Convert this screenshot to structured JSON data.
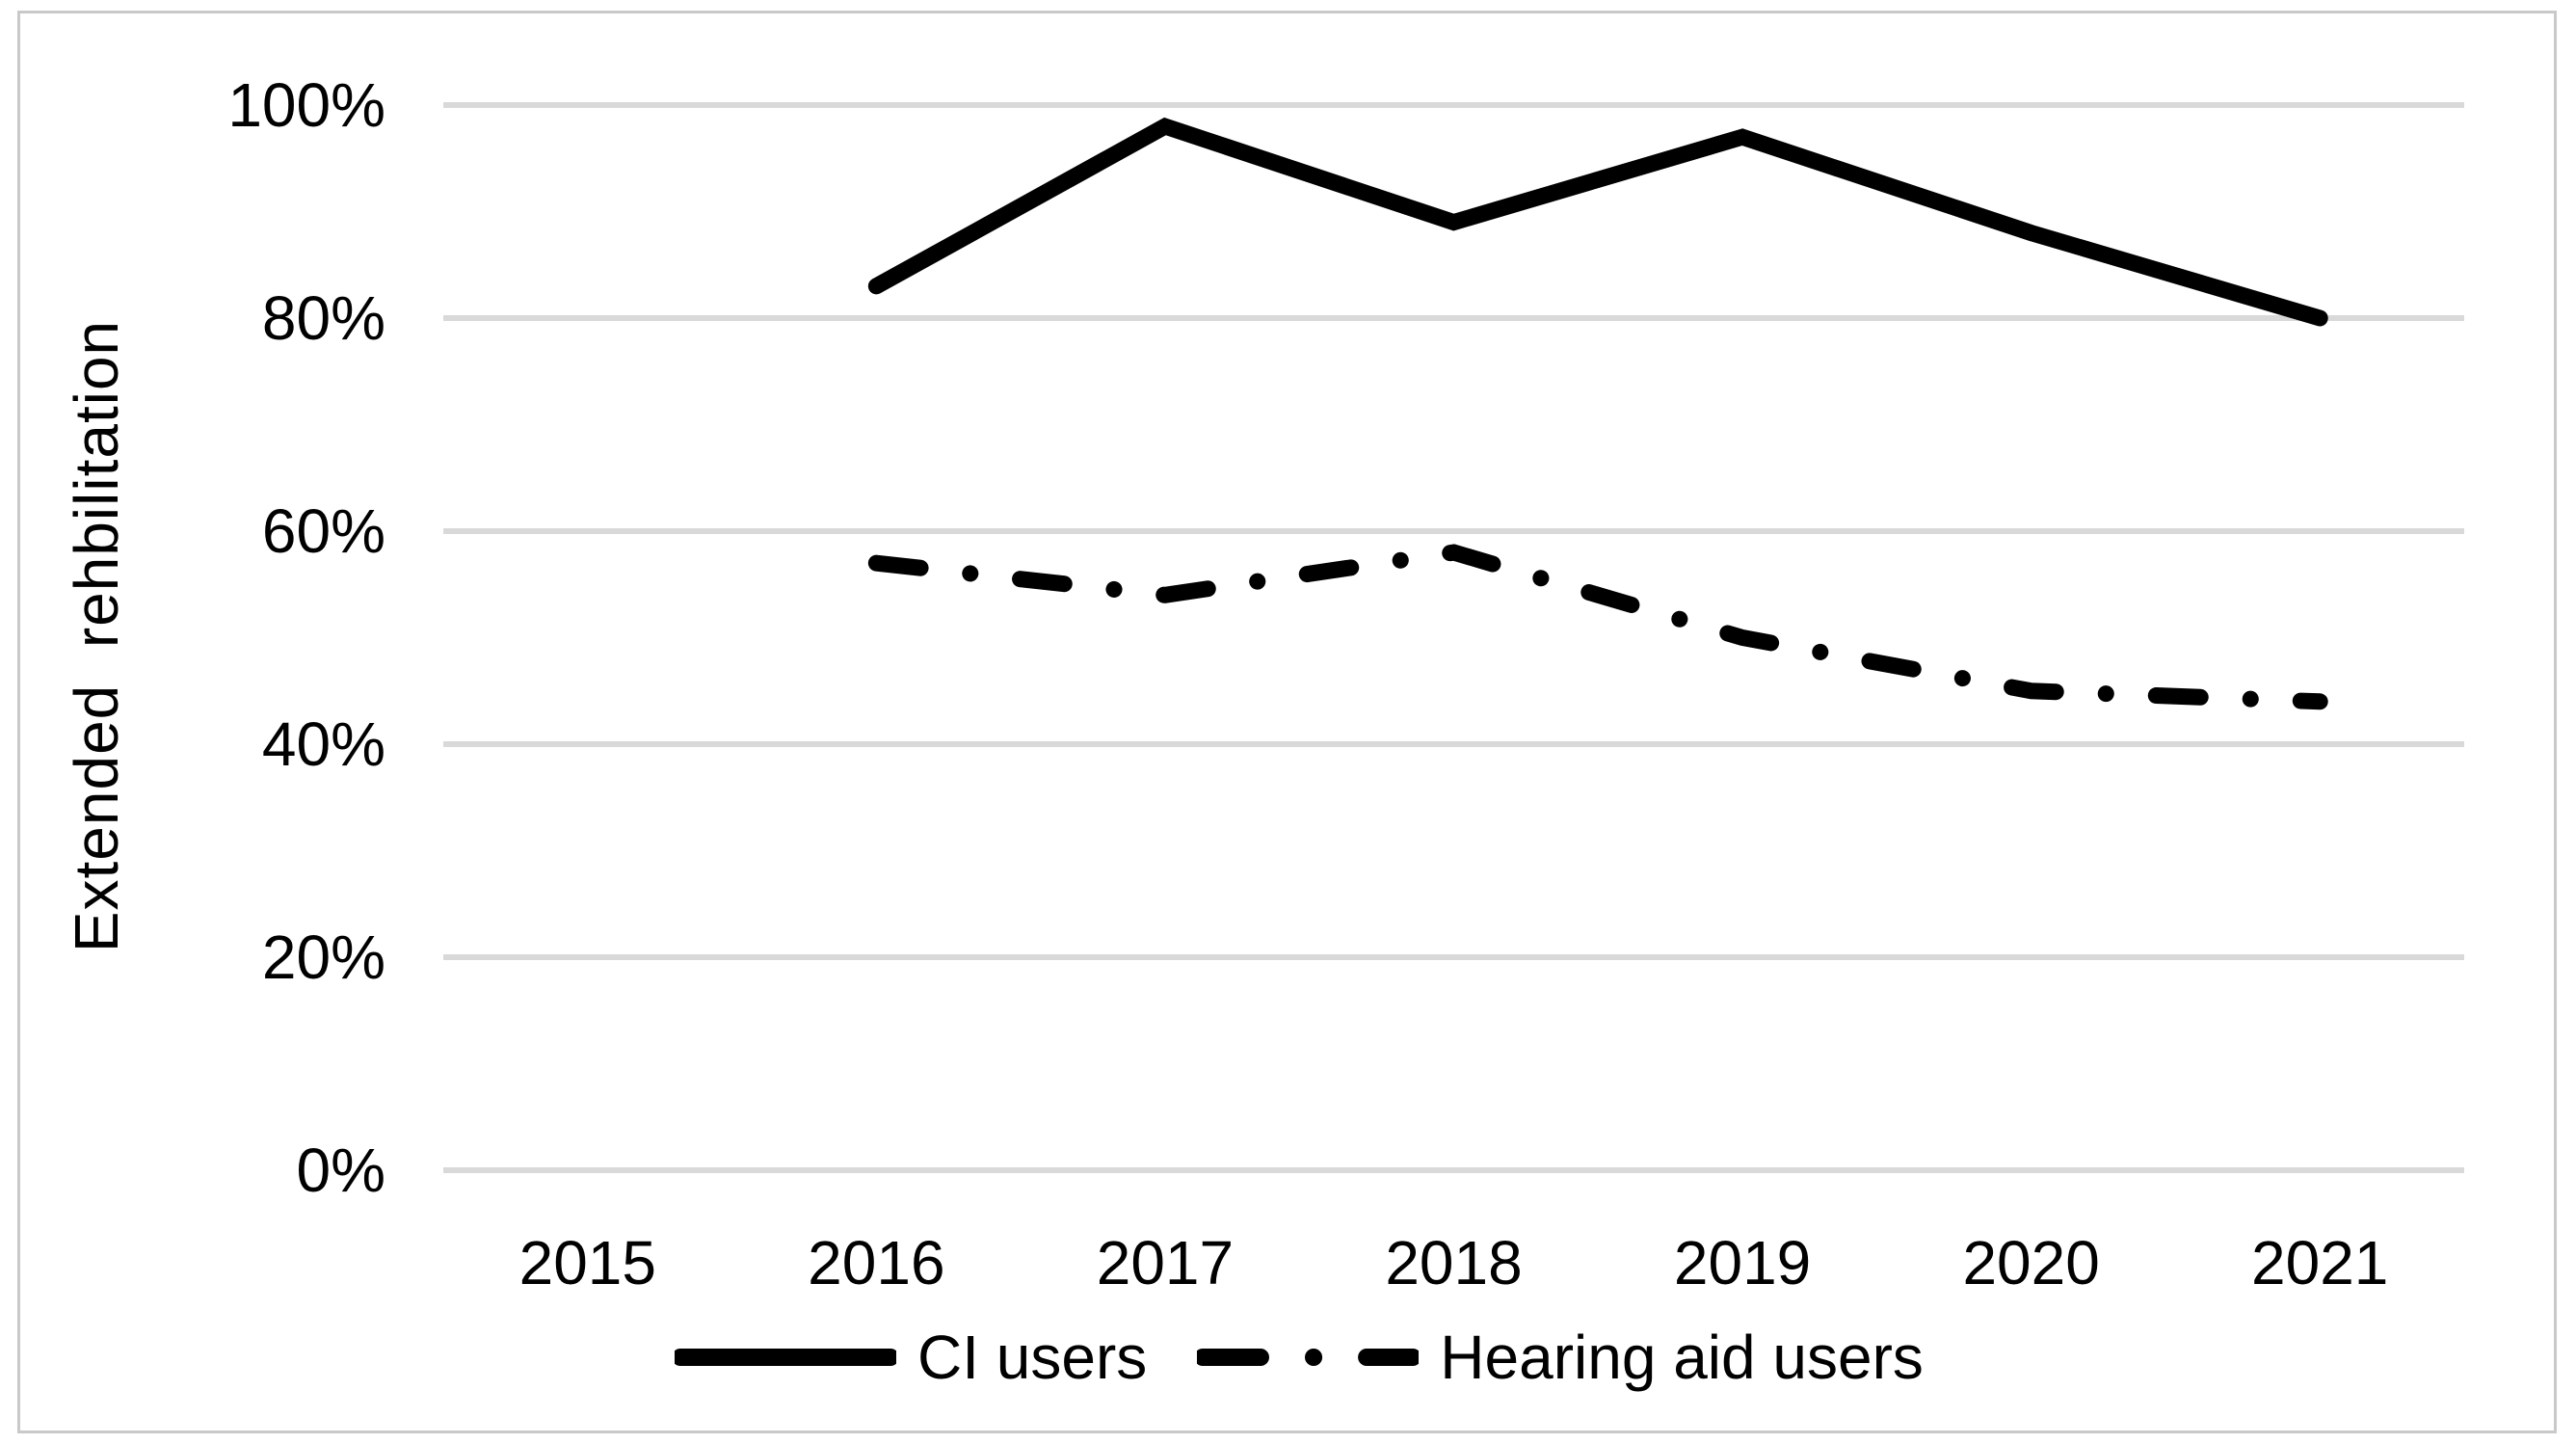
{
  "figure": {
    "background": "#ffffff",
    "border_color": "#c9c9c9"
  },
  "chart_data": {
    "type": "line",
    "title": "",
    "xlabel": "",
    "ylabel": "Extended  rehbilitation",
    "categories": [
      "2015",
      "2016",
      "2017",
      "2018",
      "2019",
      "2020",
      "2021"
    ],
    "y_ticks": [
      0,
      20,
      40,
      60,
      80,
      100
    ],
    "y_tick_labels": [
      "0%",
      "20%",
      "40%",
      "60%",
      "80%",
      "100%"
    ],
    "ylim": [
      0,
      100
    ],
    "grid": "horizontal",
    "gridline_color": "#d9d9d9",
    "legend_position": "bottom-center",
    "series": [
      {
        "name": "CI users",
        "style": "solid",
        "color": "#000000",
        "x": [
          "2016",
          "2017",
          "2018",
          "2019",
          "2020",
          "2021"
        ],
        "values": [
          83,
          98,
          89,
          97,
          88,
          80
        ]
      },
      {
        "name": "Hearing aid users",
        "style": "dash-dot",
        "color": "#000000",
        "x": [
          "2016",
          "2017",
          "2018",
          "2019",
          "2020",
          "2021"
        ],
        "values": [
          57,
          54,
          58,
          50,
          45,
          44
        ]
      }
    ]
  }
}
